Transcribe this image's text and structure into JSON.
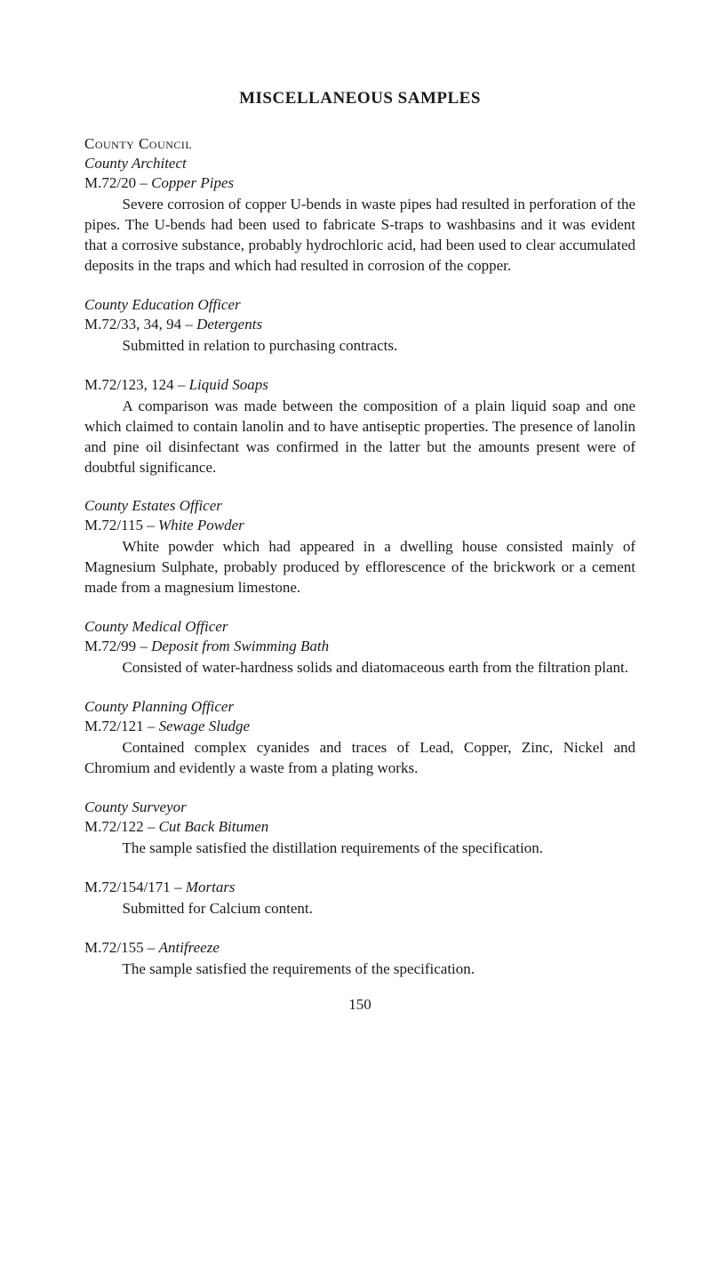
{
  "page": {
    "title": "MISCELLANEOUS SAMPLES",
    "pageNumber": "150"
  },
  "countyCouncilHeading": "County Council",
  "sections": [
    {
      "role": "County Architect",
      "entries": [
        {
          "code": "M.72/20",
          "sep": " – ",
          "desc": "Copper Pipes",
          "body": "Severe corrosion of copper U-bends in waste pipes had resulted in perforation of the pipes. The U-bends had been used to fabricate S-traps to washbasins and it was evident that a corrosive substance, probably hydrochloric acid, had been used to clear accumulated deposits in the traps and which had resulted in corrosion of the copper."
        }
      ]
    },
    {
      "role": "County Education Officer",
      "entries": [
        {
          "code": "M.72/33, 34, 94",
          "sep": " – ",
          "desc": "Detergents",
          "body": "Submitted in relation to purchasing contracts."
        },
        {
          "code": "M.72/123, 124",
          "sep": " – ",
          "desc": "Liquid Soaps",
          "body": "A comparison was made between the composition of a plain liquid soap and one which claimed to contain lanolin and to have antiseptic properties. The presence of lanolin and pine oil disinfectant was confirmed in the latter but the amounts present were of doubtful significance."
        }
      ]
    },
    {
      "role": "County Estates Officer",
      "entries": [
        {
          "code": "M.72/115",
          "sep": " – ",
          "desc": "White Powder",
          "body": "White powder which had appeared in a dwelling house consisted mainly of Magnesium Sulphate, probably produced by efflorescence of the brickwork or a cement made from a magnesium limestone."
        }
      ]
    },
    {
      "role": "County Medical Officer",
      "entries": [
        {
          "code": "M.72/99",
          "sep": " – ",
          "desc": "Deposit from Swimming Bath",
          "body": "Consisted of water-hardness solids and diatomaceous earth from the filtration plant."
        }
      ]
    },
    {
      "role": "County Planning Officer",
      "entries": [
        {
          "code": "M.72/121",
          "sep": " – ",
          "desc": "Sewage Sludge",
          "body": "Contained complex cyanides and traces of Lead, Copper, Zinc, Nickel and Chromium and evidently a waste from a plating works."
        }
      ]
    },
    {
      "role": "County Surveyor",
      "entries": [
        {
          "code": "M.72/122",
          "sep": " – ",
          "desc": "Cut Back Bitumen",
          "body": "The sample satisfied the distillation requirements of the specification."
        },
        {
          "code": "M.72/154/171",
          "sep": " – ",
          "desc": "Mortars",
          "body": "Submitted for Calcium content."
        },
        {
          "code": "M.72/155",
          "sep": " – ",
          "desc": "Antifreeze",
          "body": "The sample satisfied the requirements of the specification."
        }
      ]
    }
  ]
}
